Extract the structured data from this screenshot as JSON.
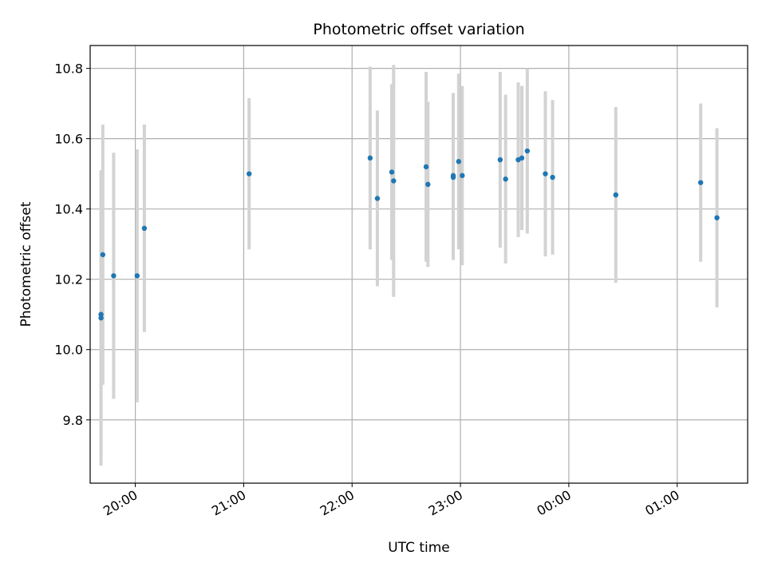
{
  "chart_data": {
    "type": "scatter",
    "title": "Photometric offset variation",
    "xlabel": "UTC time",
    "ylabel": "Photometric offset",
    "xlim": [
      "19:35",
      "01:39"
    ],
    "ylim": [
      9.62,
      10.865
    ],
    "x_ticks": [
      "20:00",
      "21:00",
      "22:00",
      "23:00",
      "00:00",
      "01:00"
    ],
    "y_ticks": [
      9.8,
      10.0,
      10.2,
      10.4,
      10.6,
      10.8
    ],
    "grid": true,
    "colors": {
      "points": "#1f77b4",
      "errorbars": "#d3d3d3",
      "grid": "#b0b0b0"
    },
    "points": [
      {
        "x": "19:41",
        "y": 10.09,
        "err": 0.42
      },
      {
        "x": "19:41",
        "y": 10.1,
        "err": 0.41
      },
      {
        "x": "19:42",
        "y": 10.27,
        "err": 0.37
      },
      {
        "x": "19:48",
        "y": 10.21,
        "err": 0.35
      },
      {
        "x": "20:01",
        "y": 10.21,
        "err": 0.36
      },
      {
        "x": "20:05",
        "y": 10.345,
        "err": 0.295
      },
      {
        "x": "21:03",
        "y": 10.5,
        "err": 0.215
      },
      {
        "x": "22:10",
        "y": 10.545,
        "err": 0.26
      },
      {
        "x": "22:14",
        "y": 10.43,
        "err": 0.25
      },
      {
        "x": "22:22",
        "y": 10.505,
        "err": 0.25
      },
      {
        "x": "22:23",
        "y": 10.48,
        "err": 0.33
      },
      {
        "x": "22:41",
        "y": 10.52,
        "err": 0.27
      },
      {
        "x": "22:42",
        "y": 10.47,
        "err": 0.235
      },
      {
        "x": "22:56",
        "y": 10.49,
        "err": 0.235
      },
      {
        "x": "22:56",
        "y": 10.495,
        "err": 0.235
      },
      {
        "x": "22:59",
        "y": 10.535,
        "err": 0.25
      },
      {
        "x": "23:01",
        "y": 10.495,
        "err": 0.255
      },
      {
        "x": "23:22",
        "y": 10.54,
        "err": 0.25
      },
      {
        "x": "23:25",
        "y": 10.485,
        "err": 0.24
      },
      {
        "x": "23:32",
        "y": 10.54,
        "err": 0.22
      },
      {
        "x": "23:34",
        "y": 10.545,
        "err": 0.205
      },
      {
        "x": "23:37",
        "y": 10.565,
        "err": 0.235
      },
      {
        "x": "23:47",
        "y": 10.5,
        "err": 0.235
      },
      {
        "x": "23:51",
        "y": 10.49,
        "err": 0.22
      },
      {
        "x": "00:26",
        "y": 10.44,
        "err": 0.25
      },
      {
        "x": "01:13",
        "y": 10.475,
        "err": 0.225
      },
      {
        "x": "01:22",
        "y": 10.375,
        "err": 0.255
      }
    ]
  }
}
